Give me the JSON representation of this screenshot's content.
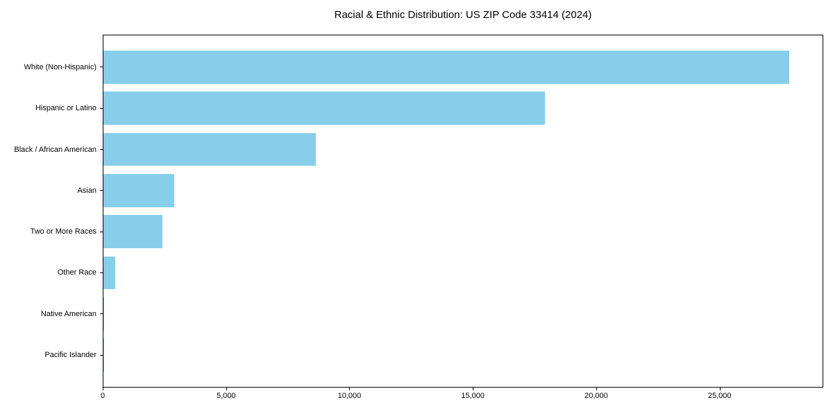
{
  "chart_data": {
    "type": "bar",
    "orientation": "horizontal",
    "title": "Racial & Ethnic Distribution: US ZIP Code 33414 (2024)",
    "categories": [
      "White (Non-Hispanic)",
      "Hispanic or Latino",
      "Black / African American",
      "Asian",
      "Two or More Races",
      "Other Race",
      "Native American",
      "Pacific Islander"
    ],
    "values": [
      27800,
      17900,
      8600,
      2870,
      2400,
      480,
      20,
      10
    ],
    "bar_color": "#87CEEB",
    "xlabel": "",
    "ylabel": "",
    "xlim": [
      0,
      29200
    ],
    "x_ticks": [
      {
        "value": 0,
        "label": "0"
      },
      {
        "value": 5000,
        "label": "5,000"
      },
      {
        "value": 10000,
        "label": "10,000"
      },
      {
        "value": 15000,
        "label": "15,000"
      },
      {
        "value": 20000,
        "label": "20,000"
      },
      {
        "value": 25000,
        "label": "25,000"
      }
    ],
    "grid": false,
    "legend": null,
    "plot_background": "#ffffff",
    "border_color": "#000000"
  }
}
